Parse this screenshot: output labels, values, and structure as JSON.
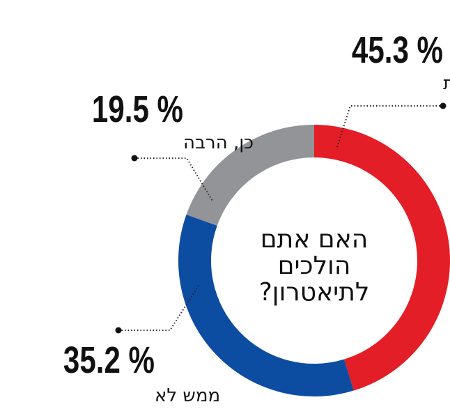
{
  "chart_data": {
    "type": "pie",
    "variant": "donut",
    "title": "האם אתם הולכים לתיאטרון?",
    "title_lines": [
      "האם אתם",
      "הולכים",
      "לתיאטרון?"
    ],
    "unit": "%",
    "start": "top",
    "direction": "clockwise",
    "slices": [
      {
        "label": "פעמים ספורות",
        "value": 45.3,
        "display": "45.3 %",
        "color": "#e31e26"
      },
      {
        "label": "ממש לא",
        "value": 35.2,
        "display": "35.2 %",
        "color": "#0c4da2"
      },
      {
        "label": "כן, הרבה",
        "value": 19.5,
        "display": "19.5 %",
        "color": "#929497"
      }
    ]
  }
}
